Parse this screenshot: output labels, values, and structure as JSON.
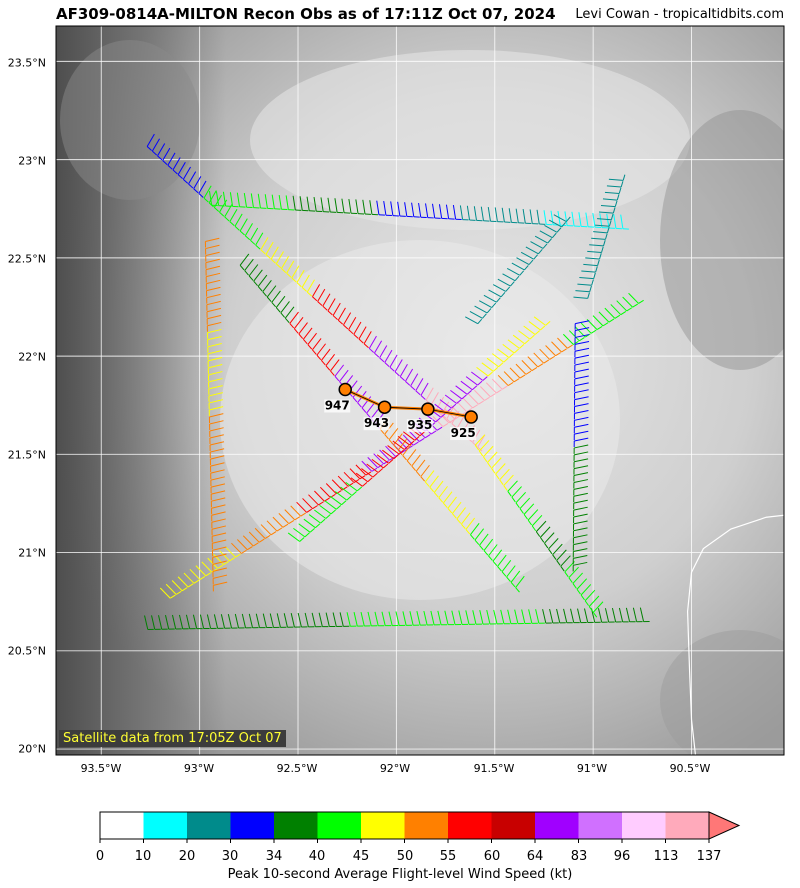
{
  "header": {
    "title": "AF309-0814A-MILTON Recon Obs as of 17:11Z Oct 07, 2024",
    "credit": "Levi Cowan - tropicaltidbits.com"
  },
  "map": {
    "lon_range": [
      -93.73,
      -90.03
    ],
    "lat_range": [
      19.97,
      23.68
    ],
    "x_ticks": [
      "93.5°W",
      "93°W",
      "92.5°W",
      "92°W",
      "91.5°W",
      "91°W",
      "90.5°W"
    ],
    "y_ticks": [
      "23.5°N",
      "23°N",
      "22.5°N",
      "22°N",
      "21.5°N",
      "21°N",
      "20.5°N",
      "20°N"
    ],
    "satellite_note": "Satellite data from 17:05Z Oct 07",
    "center_track": [
      {
        "lon": -92.26,
        "lat": 21.83,
        "pressure": "947"
      },
      {
        "lon": -92.06,
        "lat": 21.74,
        "pressure": "943"
      },
      {
        "lon": -91.84,
        "lat": 21.73,
        "pressure": "935"
      },
      {
        "lon": -91.62,
        "lat": 21.69,
        "pressure": "925"
      }
    ],
    "colors": {
      "track": "#ff7f00",
      "marker_edge": "#000000",
      "coastline": "#ffffff"
    }
  },
  "colorbar": {
    "ticks": [
      "0",
      "10",
      "20",
      "30",
      "34",
      "40",
      "45",
      "50",
      "55",
      "60",
      "64",
      "83",
      "96",
      "113",
      "137"
    ],
    "colors": [
      "#ffffff",
      "#00ffff",
      "#008b8b",
      "#0000ff",
      "#008000",
      "#00ff00",
      "#ffff00",
      "#ff8000",
      "#ff0000",
      "#c80000",
      "#a000ff",
      "#d070ff",
      "#ffccff",
      "#ffaabb"
    ],
    "label": "Peak 10-second Average Flight-level Wind Speed (kt)"
  },
  "flight_legs": [
    {
      "from": [
        -93.28,
        20.68
      ],
      "to": [
        -90.76,
        20.72
      ],
      "colors": [
        "#008000",
        "#008000",
        "#00ff00",
        "#00ff00",
        "#008000"
      ]
    },
    {
      "from": [
        -92.95,
        22.84
      ],
      "to": [
        -90.86,
        22.72
      ],
      "colors": [
        "#00ff00",
        "#008000",
        "#0000ff",
        "#008b8b",
        "#00ffff"
      ]
    },
    {
      "from": [
        -93.23,
        23.13
      ],
      "to": [
        -91.55,
        21.6
      ],
      "colors": [
        "#0000ff",
        "#00ff00",
        "#ffff00",
        "#ff0000",
        "#a000ff",
        "#ffaabb"
      ]
    },
    {
      "from": [
        -91.55,
        21.6
      ],
      "to": [
        -90.95,
        20.75
      ],
      "colors": [
        "#ffff00",
        "#00ff00",
        "#008000",
        "#00ff00"
      ]
    },
    {
      "from": [
        -93.2,
        20.82
      ],
      "to": [
        -90.82,
        22.32
      ],
      "colors": [
        "#ffff00",
        "#ff8000",
        "#ff0000",
        "#a000ff",
        "#ffaabb",
        "#ff8000",
        "#00ff00"
      ]
    },
    {
      "from": [
        -92.9,
        22.6
      ],
      "to": [
        -92.86,
        20.85
      ],
      "colors": [
        "#ff8000",
        "#ffff00",
        "#ff8000",
        "#ff8000"
      ]
    },
    {
      "from": [
        -92.75,
        22.52
      ],
      "to": [
        -91.35,
        20.88
      ],
      "colors": [
        "#008000",
        "#ff0000",
        "#a000ff",
        "#ff8000",
        "#ffff00",
        "#00ff00"
      ]
    },
    {
      "from": [
        -91.1,
        22.3
      ],
      "to": [
        -90.92,
        22.9
      ],
      "colors": [
        "#008b8b"
      ]
    },
    {
      "from": [
        -91.02,
        22.18
      ],
      "to": [
        -91.03,
        20.95
      ],
      "colors": [
        "#0000ff",
        "#008000"
      ]
    },
    {
      "from": [
        -91.65,
        22.2
      ],
      "to": [
        -91.2,
        22.72
      ],
      "colors": [
        "#008b8b"
      ]
    },
    {
      "from": [
        -92.55,
        21.1
      ],
      "to": [
        -91.3,
        22.2
      ],
      "colors": [
        "#00ff00",
        "#ff0000",
        "#a000ff",
        "#ffff00"
      ]
    }
  ]
}
